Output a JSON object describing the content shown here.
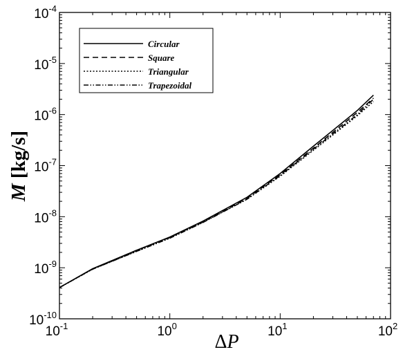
{
  "chart_data": {
    "type": "line",
    "x_scale": "log",
    "y_scale": "log",
    "xlim": [
      0.1,
      100
    ],
    "ylim": [
      1e-10,
      0.0001
    ],
    "x_ticks": [
      {
        "base": "10",
        "exp": "-1",
        "value": 0.1
      },
      {
        "base": "10",
        "exp": "0",
        "value": 1
      },
      {
        "base": "10",
        "exp": "1",
        "value": 10
      },
      {
        "base": "10",
        "exp": "2",
        "value": 100
      }
    ],
    "y_ticks": [
      {
        "base": "10",
        "exp": "-10",
        "value": 1e-10
      },
      {
        "base": "10",
        "exp": "-9",
        "value": 1e-09
      },
      {
        "base": "10",
        "exp": "-8",
        "value": 1e-08
      },
      {
        "base": "10",
        "exp": "-7",
        "value": 1e-07
      },
      {
        "base": "10",
        "exp": "-6",
        "value": 1e-06
      },
      {
        "base": "10",
        "exp": "-5",
        "value": 1e-05
      },
      {
        "base": "10",
        "exp": "-4",
        "value": 0.0001
      }
    ],
    "xlabel": {
      "symbol": "Δ",
      "var": "P"
    },
    "ylabel": {
      "var": "M",
      "unit": " [kg/s]"
    },
    "legend_position": "top-left",
    "grid": false,
    "series": [
      {
        "name": "Circular",
        "dash": "solid",
        "x": [
          0.1,
          0.2,
          0.5,
          1,
          2,
          5,
          10,
          20,
          50,
          70
        ],
        "y": [
          4.1e-10,
          9.6e-10,
          2.2e-09,
          4e-09,
          8.2e-09,
          2.4e-08,
          7e-08,
          2.4e-07,
          1.2e-06,
          2.4e-06
        ]
      },
      {
        "name": "Square",
        "dash": "dashed",
        "x": [
          0.1,
          0.2,
          0.5,
          1,
          2,
          5,
          10,
          20,
          50,
          70
        ],
        "y": [
          4.1e-10,
          9.5e-10,
          2.2e-09,
          3.9e-09,
          8e-09,
          2.3e-08,
          6.6e-08,
          2.2e-07,
          1.1e-06,
          2.1e-06
        ]
      },
      {
        "name": "Triangular",
        "dash": "dotted",
        "x": [
          0.1,
          0.2,
          0.5,
          1,
          2,
          5,
          10,
          20,
          50,
          70
        ],
        "y": [
          4.1e-10,
          9.4e-10,
          2.1e-09,
          3.8e-09,
          7.8e-09,
          2.2e-08,
          6.2e-08,
          2e-07,
          9.5e-07,
          1.8e-06
        ]
      },
      {
        "name": "Trapezoidal",
        "dash": "dash-dot-dot",
        "x": [
          0.1,
          0.2,
          0.5,
          1,
          2,
          5,
          10,
          20,
          50,
          70
        ],
        "y": [
          4.1e-10,
          9.4e-10,
          2.1e-09,
          3.8e-09,
          7.7e-09,
          2.2e-08,
          6.4e-08,
          2.1e-07,
          1e-06,
          2e-06
        ]
      }
    ]
  }
}
